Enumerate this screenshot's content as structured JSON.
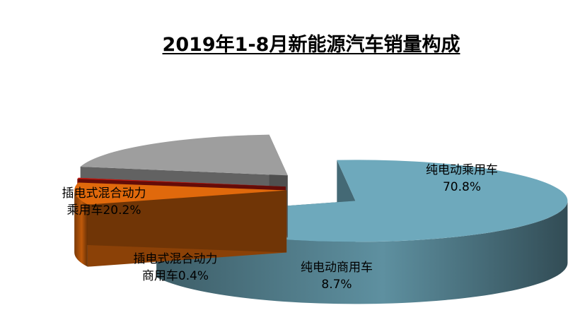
{
  "chart_data": {
    "type": "pie",
    "style": "3d-exploded",
    "title": "2019年1-8月新能源汽车销量构成",
    "slices": [
      {
        "label_lines": [
          "纯电动乘用车",
          "70.8%"
        ],
        "value": 70.8,
        "color": "#6ea9bc"
      },
      {
        "label_lines": [
          "纯电动商用车",
          "8.7%"
        ],
        "value": 8.7,
        "color": "#e0690c"
      },
      {
        "label_lines": [
          "插电式混合动力",
          "商用车0.4%"
        ],
        "value": 0.4,
        "color": "#c8170f"
      },
      {
        "label_lines": [
          "插电式混合动力",
          "乘用车20.2%"
        ],
        "value": 20.2,
        "color": "#9e9e9e"
      }
    ],
    "legend": "none",
    "grid": false
  }
}
